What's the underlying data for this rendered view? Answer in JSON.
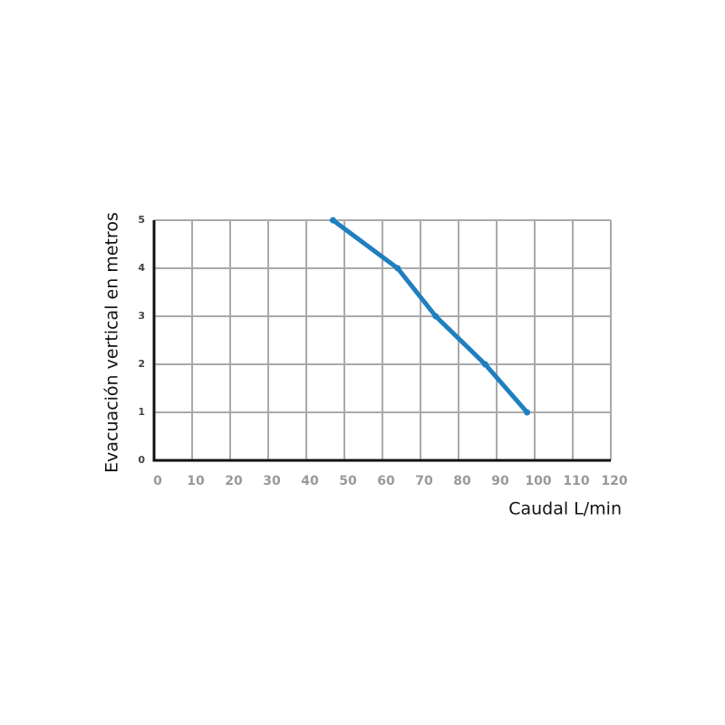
{
  "chart_data": {
    "type": "line",
    "x_label": "Caudal L/min",
    "y_label": "Evacuación vertical en metros",
    "series": [
      {
        "name": "Evacuación",
        "color": "#1f7fbf",
        "x": [
          47,
          64,
          74,
          87,
          98
        ],
        "values": [
          5,
          4,
          3,
          2,
          1
        ]
      }
    ],
    "xlim": [
      0,
      120
    ],
    "xticks": [
      0,
      10,
      20,
      30,
      40,
      50,
      60,
      70,
      80,
      90,
      100,
      110,
      120
    ],
    "ylim": [
      0,
      5
    ],
    "yticks": [
      0,
      1,
      2,
      3,
      4,
      5
    ],
    "grid": true
  }
}
